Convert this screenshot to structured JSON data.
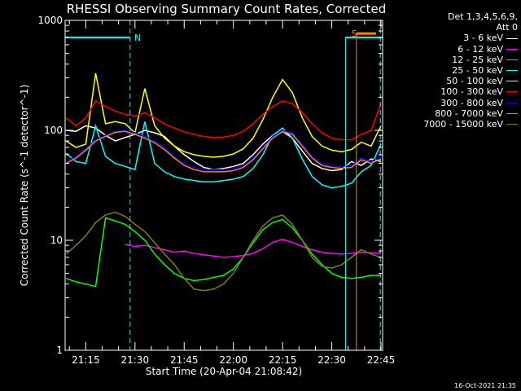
{
  "chart_data": {
    "type": "line",
    "title": "RHESSI Observing Summary Count Rates, Corrected",
    "xlabel": "Start Time (20-Apr-04 21:08:42)",
    "ylabel": "Corrected Count Rate (s^-1 detector^-1)",
    "yscale": "log",
    "ylim": [
      1,
      1000
    ],
    "xlim_minutes_after_21_00": [
      8.7,
      105.5
    ],
    "x_ticks": [
      "21:15",
      "21:30",
      "21:45",
      "22:00",
      "22:15",
      "22:30",
      "22:45"
    ],
    "y_ticks": [
      "1",
      "10",
      "100",
      "1000"
    ],
    "legend_header": [
      "Det 1,3,4,5,6,9,",
      "Att 0"
    ],
    "series": [
      {
        "name": "3 - 6 keV",
        "color": "#ffffff",
        "x": [
          9,
          12,
          15,
          18,
          21,
          24,
          27,
          30,
          33,
          36,
          39,
          42,
          45,
          48,
          51,
          54,
          57,
          60,
          63,
          66,
          69,
          72,
          75,
          78,
          81,
          84,
          87,
          90,
          93,
          96,
          99,
          102,
          105
        ],
        "y": [
          100,
          98,
          110,
          105,
          90,
          80,
          86,
          92,
          100,
          95,
          88,
          72,
          60,
          52,
          46,
          44,
          45,
          47,
          50,
          60,
          75,
          90,
          98,
          85,
          65,
          50,
          45,
          43,
          44,
          52,
          48,
          55,
          52
        ]
      },
      {
        "name": "6 - 12 keV",
        "color": "#ff00ff",
        "x": [
          27,
          30,
          33,
          36,
          39,
          42,
          45,
          48,
          51,
          54,
          57,
          60,
          63,
          66,
          69,
          72,
          75,
          78,
          81,
          84,
          87,
          90,
          93,
          96,
          99,
          102,
          105
        ],
        "y": [
          9.2,
          8.8,
          9.0,
          8.6,
          8.2,
          7.8,
          8.0,
          7.6,
          7.4,
          7.2,
          7.0,
          7.1,
          7.3,
          7.6,
          8.4,
          9.6,
          10.2,
          9.6,
          8.8,
          8.2,
          7.8,
          7.6,
          7.5,
          7.6,
          7.8,
          7.7,
          7.6
        ]
      },
      {
        "name": "12 - 25 keV",
        "color": "#00ff00",
        "x": [
          9,
          12,
          15,
          18,
          21,
          24,
          27,
          30,
          33,
          36,
          39,
          42,
          45,
          48,
          51,
          54,
          57,
          60,
          63,
          66,
          69,
          72,
          75,
          78,
          81,
          84,
          87,
          90,
          93,
          96,
          99,
          102,
          105
        ],
        "y": [
          4.5,
          4.2,
          4.0,
          3.8,
          16,
          15,
          14,
          12,
          10,
          7.5,
          6.0,
          5.0,
          4.5,
          4.3,
          4.4,
          4.6,
          4.8,
          5.5,
          7.0,
          9.5,
          12.5,
          14.5,
          15.5,
          13.0,
          10.0,
          7.5,
          6.0,
          5.0,
          4.6,
          4.5,
          4.6,
          4.8,
          4.8
        ]
      },
      {
        "name": "25 - 50 keV",
        "color": "#00ffff",
        "x": [
          9,
          12,
          15,
          18,
          21,
          24,
          27,
          30,
          33,
          36,
          39,
          42,
          45,
          48,
          51,
          54,
          57,
          60,
          63,
          66,
          69,
          72,
          75,
          78,
          81,
          84,
          87,
          90,
          93,
          96,
          99,
          102,
          105
        ],
        "y": [
          62,
          52,
          50,
          110,
          58,
          50,
          47,
          44,
          120,
          50,
          42,
          38,
          36,
          35,
          34,
          34,
          35,
          36,
          38,
          45,
          60,
          90,
          105,
          85,
          55,
          38,
          32,
          30,
          31,
          33,
          42,
          48,
          75
        ]
      },
      {
        "name": "50 - 100 keV",
        "color": "#ffff00",
        "x": [
          9,
          12,
          15,
          18,
          21,
          24,
          27,
          30,
          33,
          36,
          39,
          42,
          45,
          48,
          51,
          54,
          57,
          60,
          63,
          66,
          69,
          72,
          75,
          78,
          81,
          84,
          87,
          90,
          93,
          96,
          99,
          102,
          105
        ],
        "y": [
          80,
          70,
          75,
          330,
          115,
          120,
          115,
          95,
          240,
          110,
          85,
          72,
          64,
          60,
          58,
          57,
          58,
          61,
          68,
          85,
          125,
          200,
          290,
          220,
          130,
          88,
          72,
          66,
          64,
          67,
          78,
          72,
          110
        ]
      },
      {
        "name": "100 - 300 keV",
        "color": "#ff0000",
        "x": [
          9,
          12,
          15,
          18,
          21,
          24,
          27,
          30,
          33,
          36,
          39,
          42,
          45,
          48,
          51,
          54,
          57,
          60,
          63,
          66,
          69,
          72,
          75,
          78,
          81,
          84,
          87,
          90,
          93,
          96,
          99,
          102,
          105
        ],
        "y": [
          130,
          110,
          130,
          185,
          165,
          150,
          140,
          135,
          145,
          130,
          115,
          105,
          97,
          92,
          88,
          86,
          87,
          90,
          98,
          115,
          140,
          165,
          185,
          175,
          145,
          115,
          95,
          85,
          82,
          82,
          92,
          100,
          175
        ]
      },
      {
        "name": "300 - 800 keV",
        "color": "#0000ff",
        "x": [
          9,
          12,
          15,
          18,
          21,
          24,
          27,
          30,
          33,
          36,
          39,
          42,
          45,
          48,
          51,
          54,
          57,
          60,
          63,
          66,
          69,
          72,
          75,
          78,
          81,
          84,
          87,
          90,
          93,
          96,
          99,
          102,
          105
        ],
        "y": [
          52,
          58,
          68,
          82,
          90,
          98,
          100,
          95,
          88,
          80,
          70,
          58,
          50,
          46,
          44,
          44,
          44,
          45,
          48,
          56,
          70,
          88,
          100,
          95,
          75,
          58,
          50,
          48,
          47,
          48,
          56,
          52,
          58
        ]
      },
      {
        "name": "800 - 7000 keV",
        "color": "#ff8000",
        "x": [
          9,
          12,
          15,
          18,
          21,
          24,
          27,
          30,
          33,
          36,
          39,
          42,
          45,
          48,
          51,
          54,
          57,
          60,
          63,
          66,
          69,
          72,
          75,
          78,
          81,
          84,
          87,
          90,
          93,
          96,
          99,
          102,
          105
        ],
        "y": [
          50,
          56,
          66,
          80,
          88,
          96,
          98,
          92,
          85,
          77,
          67,
          56,
          48,
          44,
          42,
          42,
          42,
          43,
          46,
          54,
          68,
          85,
          97,
          92,
          72,
          56,
          48,
          46,
          45,
          46,
          54,
          50,
          55
        ]
      },
      {
        "name": "7000 - 15000 keV",
        "color": "#808000",
        "x": [
          9,
          12,
          15,
          18,
          21,
          24,
          27,
          30,
          33,
          36,
          39,
          42,
          45,
          48,
          51,
          54,
          57,
          60,
          63,
          66,
          69,
          72,
          75,
          78,
          81,
          84,
          87,
          90,
          93,
          96,
          99,
          102,
          105
        ],
        "y": [
          7.5,
          9.0,
          11.0,
          14.5,
          17.0,
          18.0,
          16.5,
          14.0,
          12.0,
          9.5,
          7.5,
          6.0,
          4.5,
          3.6,
          3.5,
          3.6,
          4.0,
          5.0,
          7.0,
          10.0,
          13.5,
          16.0,
          17.0,
          14.0,
          10.0,
          7.0,
          5.8,
          5.6,
          6.0,
          7.0,
          8.2,
          7.5,
          7.0
        ]
      }
    ],
    "annotations": [
      {
        "text": "N",
        "color": "#00ffff",
        "x": 29.8,
        "y": 700
      },
      {
        "text": "S",
        "color": "#ff8000",
        "x": 96,
        "y": 760
      }
    ],
    "markers": {
      "night_bar": {
        "color": "#00ffff",
        "x": [
          8.7,
          28.5
        ],
        "y": 700
      },
      "night_start": {
        "color": "#00ffff",
        "x": 28.5
      },
      "night_bar_2": {
        "color": "#00ffff",
        "x": [
          94.2,
          105.5
        ],
        "y": 700
      },
      "night_line_2": {
        "color": "#00ffff",
        "x": 94.2
      },
      "saa_bar": {
        "color": "#ff8000",
        "x": [
          97.5,
          103.5
        ],
        "y": 760
      },
      "saa_line": {
        "color": "#ff8000",
        "x": 97.5
      },
      "night_end_dashed": {
        "color": "#00ffff",
        "x": 104.8
      }
    },
    "grid": false,
    "legend_position": "right"
  },
  "footer": {
    "timestamp": "16-Oct-2021 21:35"
  }
}
